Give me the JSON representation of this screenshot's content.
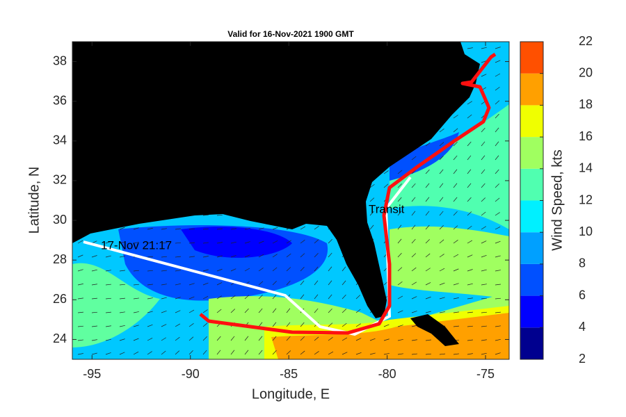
{
  "chart_data": {
    "type": "map",
    "title": "Valid for 16-Nov-2021 1900 GMT",
    "xlabel": "Longitude, E",
    "ylabel": "Latitude, N",
    "xlim": [
      -96,
      -73.8
    ],
    "xticks": [
      -95,
      -90,
      -85,
      -80,
      -75
    ],
    "ylim": [
      23,
      39
    ],
    "yticks": [
      24,
      26,
      28,
      30,
      32,
      34,
      36,
      38
    ],
    "annotations": [
      "17-Nov 21:17",
      "Transit"
    ],
    "colorbar": {
      "label": "Wind Speed, kts",
      "lim": [
        2,
        22
      ],
      "ticks": [
        2,
        4,
        6,
        8,
        10,
        12,
        14,
        16,
        18,
        20,
        22
      ],
      "colors": [
        "#00008f",
        "#0000ff",
        "#0050ff",
        "#00a0ff",
        "#00f0ff",
        "#50ffb0",
        "#a0ff60",
        "#f0ff00",
        "#ffa000",
        "#ff5000"
      ]
    }
  }
}
